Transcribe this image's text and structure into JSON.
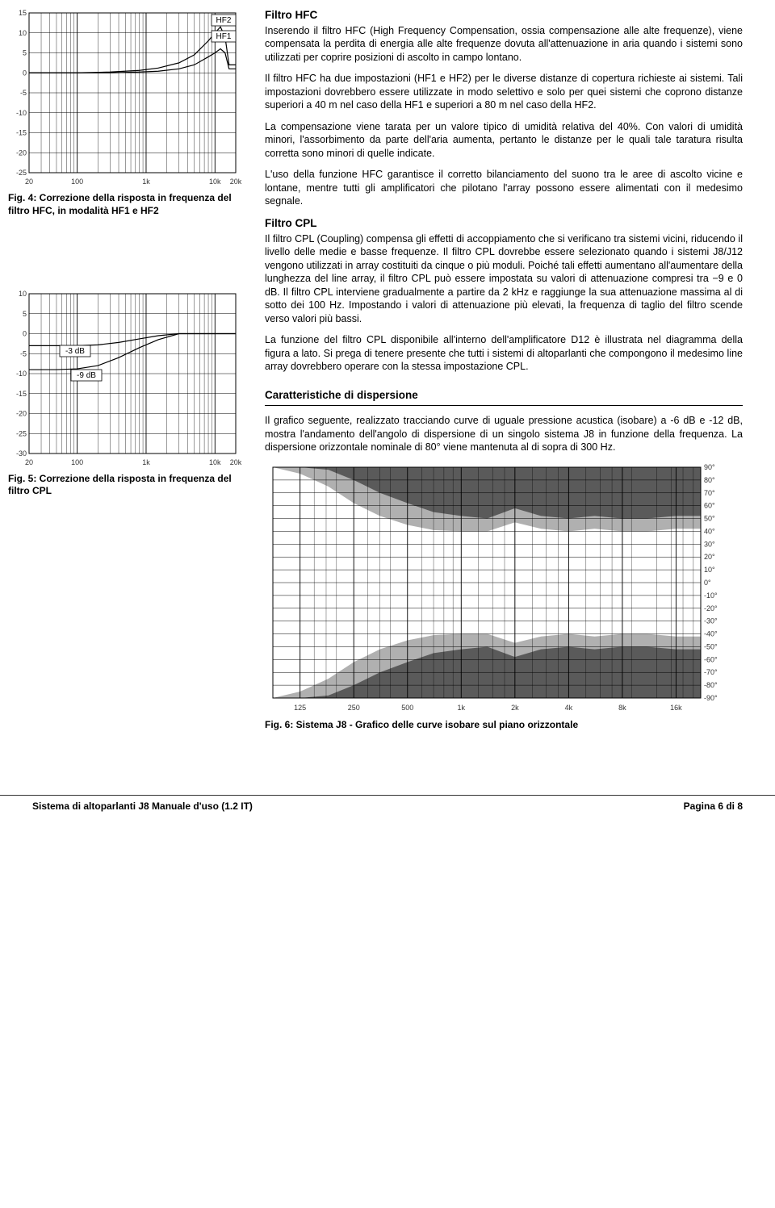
{
  "left": {
    "fig4": {
      "caption": "Fig. 4: Correzione della risposta in frequenza del filtro HFC, in modalità HF1 e HF2",
      "type": "line",
      "xscale": "log",
      "x_ticks": [
        20,
        100,
        1000,
        10000,
        20000
      ],
      "x_ticklabels": [
        "20",
        "100",
        "1k",
        "10k",
        "20k"
      ],
      "y_ticks": [
        -25,
        -20,
        -15,
        -10,
        -5,
        0,
        5,
        10,
        15
      ],
      "y_ticklabels": [
        "-25",
        "-20",
        "-15",
        "-10",
        "-5",
        "0",
        "5",
        "10",
        "15"
      ],
      "line_hf1_label": "HF1",
      "line_hf2_label": "HF2",
      "line_hf1_x": [
        20,
        100,
        300,
        800,
        1500,
        3000,
        5000,
        8000,
        10000,
        12000,
        14000,
        16000,
        20000
      ],
      "line_hf1_y": [
        0,
        0,
        0,
        0.2,
        0.4,
        1.0,
        2.0,
        4.0,
        5.0,
        6.0,
        5.0,
        1.0,
        1.0
      ],
      "line_hf2_x": [
        20,
        100,
        300,
        800,
        1500,
        3000,
        5000,
        8000,
        10000,
        12000,
        14000,
        16000,
        20000
      ],
      "line_hf2_y": [
        0,
        0,
        0.2,
        0.6,
        1.2,
        2.5,
        4.5,
        8.0,
        10.0,
        11.5,
        9.0,
        2.0,
        2.0
      ],
      "grid_color": "#000",
      "line_color": "#000",
      "line_width": 1.2,
      "background_color": "#ffffff"
    },
    "fig5": {
      "caption": "Fig. 5: Correzione della risposta in frequenza del filtro CPL",
      "type": "line",
      "xscale": "log",
      "x_ticks": [
        20,
        100,
        1000,
        10000,
        20000
      ],
      "x_ticklabels": [
        "20",
        "100",
        "1k",
        "10k",
        "20k"
      ],
      "y_ticks": [
        -30,
        -25,
        -20,
        -15,
        -10,
        -5,
        0,
        5,
        10
      ],
      "y_ticklabels": [
        "-30",
        "-25",
        "-20",
        "-15",
        "-10",
        "-5",
        "0",
        "5",
        "10"
      ],
      "label_3db": "-3 dB",
      "label_9db": "-9 dB",
      "line_3db_x": [
        20,
        50,
        100,
        200,
        400,
        800,
        1500,
        3000,
        20000
      ],
      "line_3db_y": [
        -3,
        -3,
        -3,
        -2.8,
        -2.2,
        -1.3,
        -0.5,
        0,
        0
      ],
      "line_9db_x": [
        20,
        50,
        100,
        200,
        400,
        800,
        1500,
        3000,
        20000
      ],
      "line_9db_y": [
        -9,
        -9,
        -8.8,
        -8.0,
        -6.0,
        -3.5,
        -1.5,
        0,
        0
      ],
      "grid_color": "#000",
      "line_color": "#000",
      "line_width": 1.2,
      "background_color": "#ffffff"
    }
  },
  "right": {
    "h_hfc": "Filtro HFC",
    "p_hfc_1": "Inserendo il filtro HFC (High Frequency Compensation, ossia compensazione alle alte frequenze), viene compensata la perdita di energia alle alte frequenze dovuta all'attenuazione in aria quando i sistemi sono utilizzati per coprire posizioni di ascolto in campo lontano.",
    "p_hfc_2": "Il filtro HFC ha due impostazioni (HF1 e HF2) per le diverse distanze di copertura richieste ai sistemi. Tali impostazioni dovrebbero essere utilizzate in modo selettivo e solo per quei sistemi che coprono distanze superiori a 40 m nel caso della HF1 e superiori a 80 m nel caso della HF2.",
    "p_hfc_3": "La compensazione viene tarata per un valore tipico di umidità relativa del 40%. Con valori di umidità minori, l'assorbimento da parte dell'aria aumenta, pertanto le distanze per le quali tale taratura risulta corretta sono minori di quelle indicate.",
    "p_hfc_4": "L'uso della funzione HFC garantisce il corretto bilanciamento del suono tra le aree di ascolto vicine e lontane, mentre tutti gli amplificatori che pilotano l'array possono essere alimentati con il medesimo segnale.",
    "h_cpl": "Filtro CPL",
    "p_cpl_1": "Il filtro CPL (Coupling) compensa gli effetti di accoppiamento che si verificano tra sistemi vicini, riducendo il livello delle medie e basse frequenze. Il filtro CPL dovrebbe essere selezionato quando i sistemi J8/J12 vengono utilizzati in array costituiti da cinque o più moduli. Poiché tali effetti aumentano all'aumentare della lunghezza del line array, il filtro CPL può essere impostata su valori di attenuazione compresi tra −9 e 0 dB. Il filtro CPL interviene gradualmente a partire da 2 kHz e raggiunge la sua attenuazione massima al di sotto dei 100 Hz. Impostando i valori di attenuazione più elevati, la frequenza di taglio del filtro scende verso valori più bassi.",
    "p_cpl_2": "La funzione del filtro CPL disponibile all'interno dell'amplificatore D12 è illustrata nel diagramma della figura a lato. Si prega di tenere presente che tutti i sistemi di altoparlanti che compongono il medesimo line array dovrebbero operare con la stessa impostazione CPL.",
    "h_disp": "Caratteristiche di dispersione",
    "p_disp_1": "Il grafico seguente, realizzato tracciando curve di uguale pressione acustica (isobare) a -6 dB e -12 dB, mostra l'andamento dell'angolo di dispersione di un singolo sistema J8 in funzione della frequenza. La dispersione orizzontale nominale di 80° viene mantenuta al di sopra di 300 Hz.",
    "fig6": {
      "caption": "Fig. 6: Sistema J8 - Grafico delle curve isobare sul piano orizzontale",
      "type": "isobar",
      "xscale": "log",
      "x_ticks": [
        125,
        250,
        500,
        1000,
        2000,
        4000,
        8000,
        16000
      ],
      "x_ticklabels": [
        "125",
        "250",
        "500",
        "1k",
        "2k",
        "4k",
        "8k",
        "16k"
      ],
      "y_ticks": [
        -90,
        -80,
        -70,
        -60,
        -50,
        -40,
        -30,
        -20,
        -10,
        0,
        10,
        20,
        30,
        40,
        50,
        60,
        70,
        80,
        90
      ],
      "y_ticklabels": [
        "-90°",
        "-80°",
        "-70°",
        "-60°",
        "-50°",
        "-40°",
        "-30°",
        "-20°",
        "-10°",
        "0°",
        "10°",
        "20°",
        "30°",
        "40°",
        "50°",
        "60°",
        "70°",
        "80°",
        "90°"
      ],
      "light_fill": "#b0b0b0",
      "dark_fill": "#5a5a5a",
      "grid_color": "#000",
      "background_color": "#ffffff",
      "upper_outer_x": [
        88,
        125,
        180,
        250,
        350,
        500,
        700,
        1000,
        1400,
        2000,
        2800,
        4000,
        5600,
        8000,
        11000,
        16000,
        22000
      ],
      "upper_outer_y": [
        90,
        90,
        88,
        80,
        70,
        62,
        55,
        52,
        50,
        58,
        52,
        50,
        52,
        50,
        50,
        52,
        52
      ],
      "upper_inner_x": [
        88,
        125,
        180,
        250,
        350,
        500,
        700,
        1000,
        1400,
        2000,
        2800,
        4000,
        5600,
        8000,
        11000,
        16000,
        22000
      ],
      "upper_inner_y": [
        90,
        85,
        75,
        62,
        52,
        45,
        41,
        40,
        40,
        47,
        42,
        40,
        42,
        40,
        40,
        42,
        42
      ],
      "lower_outer_x": [
        88,
        125,
        180,
        250,
        350,
        500,
        700,
        1000,
        1400,
        2000,
        2800,
        4000,
        5600,
        8000,
        11000,
        16000,
        22000
      ],
      "lower_outer_y": [
        -90,
        -90,
        -88,
        -80,
        -70,
        -62,
        -55,
        -52,
        -50,
        -58,
        -52,
        -50,
        -52,
        -50,
        -50,
        -52,
        -52
      ],
      "lower_inner_x": [
        88,
        125,
        180,
        250,
        350,
        500,
        700,
        1000,
        1400,
        2000,
        2800,
        4000,
        5600,
        8000,
        11000,
        16000,
        22000
      ],
      "lower_inner_y": [
        -90,
        -85,
        -75,
        -62,
        -52,
        -45,
        -41,
        -40,
        -40,
        -47,
        -42,
        -40,
        -42,
        -40,
        -40,
        -42,
        -42
      ]
    }
  },
  "footer": {
    "left": "Sistema di altoparlanti J8 Manuale d'uso (1.2 IT)",
    "right": "Pagina 6 di 8"
  }
}
